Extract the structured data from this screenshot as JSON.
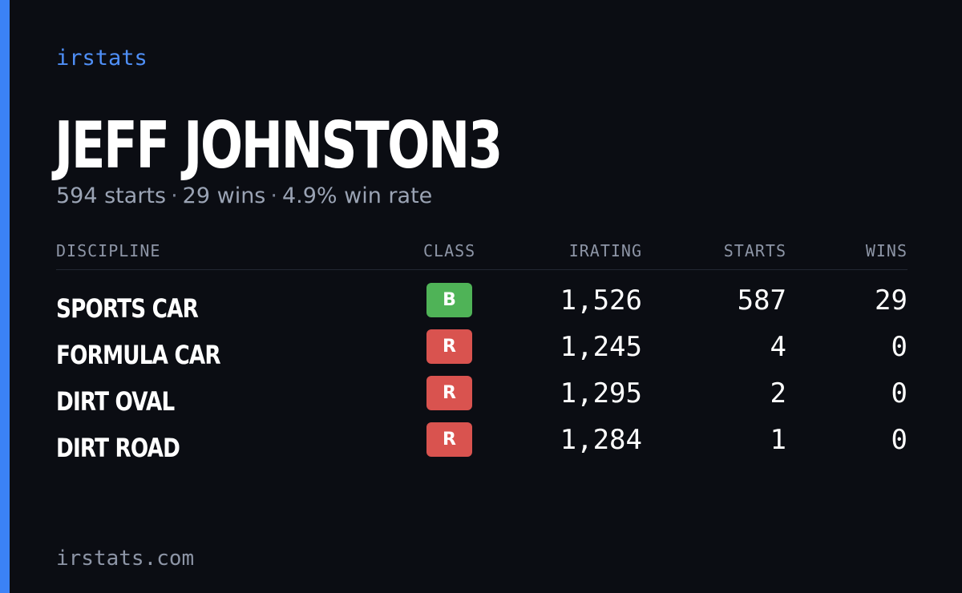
{
  "brand": "irstats",
  "player": {
    "name": "JEFF JOHNSTON3",
    "starts_text": "594 starts",
    "wins_text": "29 wins",
    "win_rate_text": "4.9% win rate",
    "separator": "·"
  },
  "table": {
    "headers": {
      "discipline": "DISCIPLINE",
      "class": "CLASS",
      "irating": "IRATING",
      "starts": "STARTS",
      "wins": "WINS"
    },
    "rows": [
      {
        "discipline": "SPORTS CAR",
        "class": "B",
        "class_color": "#4fb357",
        "irating": "1,526",
        "starts": "587",
        "wins": "29"
      },
      {
        "discipline": "FORMULA CAR",
        "class": "R",
        "class_color": "#d9534f",
        "irating": "1,245",
        "starts": "4",
        "wins": "0"
      },
      {
        "discipline": "DIRT OVAL",
        "class": "R",
        "class_color": "#d9534f",
        "irating": "1,295",
        "starts": "2",
        "wins": "0"
      },
      {
        "discipline": "DIRT ROAD",
        "class": "R",
        "class_color": "#d9534f",
        "irating": "1,284",
        "starts": "1",
        "wins": "0"
      }
    ]
  },
  "footer": "irstats.com",
  "colors": {
    "accent": "#3b82f6",
    "background": "#0b0d13"
  }
}
